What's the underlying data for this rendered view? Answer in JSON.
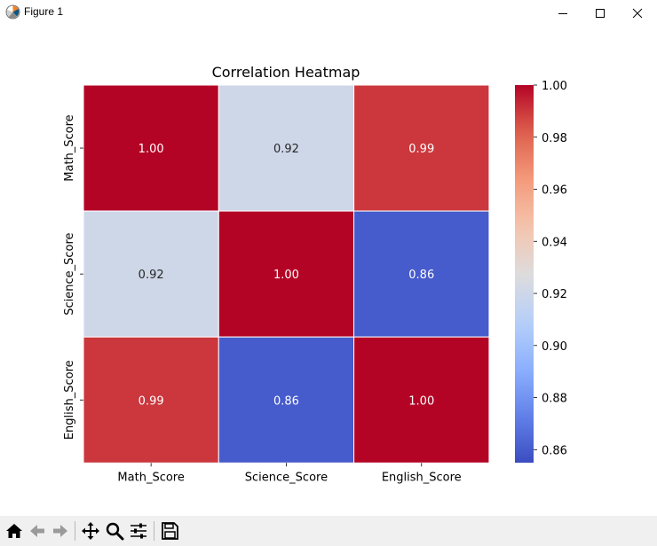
{
  "window": {
    "title": "Figure 1",
    "controls": [
      "minimize",
      "maximize",
      "close"
    ]
  },
  "toolbar": {
    "buttons": [
      {
        "name": "home-icon",
        "tooltip": "Reset original view"
      },
      {
        "name": "back-arrow-icon",
        "tooltip": "Back to previous view"
      },
      {
        "name": "forward-arrow-icon",
        "tooltip": "Forward to next view"
      },
      {
        "name": "pan-icon",
        "tooltip": "Pan axes"
      },
      {
        "name": "zoom-icon",
        "tooltip": "Zoom to rectangle"
      },
      {
        "name": "configure-subplots-icon",
        "tooltip": "Configure subplots"
      },
      {
        "name": "save-icon",
        "tooltip": "Save the figure"
      }
    ]
  },
  "chart_data": {
    "type": "heatmap",
    "title": "Correlation Heatmap",
    "x_labels": [
      "Math_Score",
      "Science_Score",
      "English_Score"
    ],
    "y_labels": [
      "Math_Score",
      "Science_Score",
      "English_Score"
    ],
    "values": [
      [
        1.0,
        0.92,
        0.99
      ],
      [
        0.92,
        1.0,
        0.86
      ],
      [
        0.99,
        0.86,
        1.0
      ]
    ],
    "value_format": "0.00",
    "colormap": "coolwarm",
    "color_range": [
      0.855,
      1.0
    ],
    "colorbar_ticks": [
      "1.00",
      "0.98",
      "0.96",
      "0.94",
      "0.92",
      "0.90",
      "0.88",
      "0.86"
    ],
    "colorbar_tick_values": [
      1.0,
      0.98,
      0.96,
      0.94,
      0.92,
      0.9,
      0.88,
      0.86
    ],
    "colors": {
      "low": "#3b4cc0",
      "mid": "#dddddd",
      "high": "#b40426"
    }
  }
}
